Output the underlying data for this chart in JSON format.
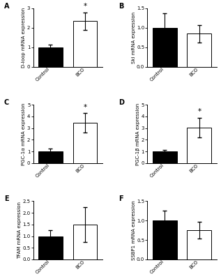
{
  "panels": [
    {
      "label": "A",
      "ylabel": "D-loop mRNA expression",
      "ylim": [
        0,
        3
      ],
      "yticks": [
        0,
        1,
        2,
        3
      ],
      "bars": [
        {
          "group": "Control",
          "value": 1.0,
          "err": 0.15,
          "color": "#000000"
        },
        {
          "group": "BCO",
          "value": 2.35,
          "err": 0.45,
          "color": "#ffffff"
        }
      ],
      "significant": true,
      "sig_bar": "BCO"
    },
    {
      "label": "B",
      "ylabel": "Ski mRNA expression",
      "ylim": [
        0.0,
        1.5
      ],
      "yticks": [
        0.0,
        0.5,
        1.0,
        1.5
      ],
      "bars": [
        {
          "group": "Control",
          "value": 1.0,
          "err": 0.38,
          "color": "#000000"
        },
        {
          "group": "BCO",
          "value": 0.85,
          "err": 0.22,
          "color": "#ffffff"
        }
      ],
      "significant": false,
      "sig_bar": null
    },
    {
      "label": "C",
      "ylabel": "PGC-1α mRNA expression",
      "ylim": [
        0,
        5
      ],
      "yticks": [
        0,
        1,
        2,
        3,
        4,
        5
      ],
      "bars": [
        {
          "group": "Control",
          "value": 1.0,
          "err": 0.25,
          "color": "#000000"
        },
        {
          "group": "BCO",
          "value": 3.45,
          "err": 0.85,
          "color": "#ffffff"
        }
      ],
      "significant": true,
      "sig_bar": "BCO"
    },
    {
      "label": "D",
      "ylabel": "PGC-1β mRNA expression",
      "ylim": [
        0,
        5
      ],
      "yticks": [
        0,
        1,
        2,
        3,
        4,
        5
      ],
      "bars": [
        {
          "group": "Control",
          "value": 1.0,
          "err": 0.15,
          "color": "#000000"
        },
        {
          "group": "BCO",
          "value": 3.05,
          "err": 0.85,
          "color": "#ffffff"
        }
      ],
      "significant": true,
      "sig_bar": "BCO"
    },
    {
      "label": "E",
      "ylabel": "TFAM mRNA expression",
      "ylim": [
        0.0,
        2.5
      ],
      "yticks": [
        0.0,
        0.5,
        1.0,
        1.5,
        2.0,
        2.5
      ],
      "bars": [
        {
          "group": "Control",
          "value": 1.0,
          "err": 0.25,
          "color": "#000000"
        },
        {
          "group": "BCO",
          "value": 1.5,
          "err": 0.75,
          "color": "#ffffff"
        }
      ],
      "significant": false,
      "sig_bar": null
    },
    {
      "label": "F",
      "ylabel": "SSBP1 mRNA expression",
      "ylim": [
        0.0,
        1.5
      ],
      "yticks": [
        0.0,
        0.5,
        1.0,
        1.5
      ],
      "bars": [
        {
          "group": "Control",
          "value": 1.0,
          "err": 0.25,
          "color": "#000000"
        },
        {
          "group": "BCO",
          "value": 0.75,
          "err": 0.22,
          "color": "#ffffff"
        }
      ],
      "significant": false,
      "sig_bar": null
    }
  ],
  "bar_width": 0.7,
  "bar_edgecolor": "#000000",
  "errorbar_color": "#000000",
  "errorbar_capsize": 2.0,
  "errorbar_linewidth": 0.8,
  "tick_fontsize": 5.0,
  "label_fontsize": 5.0,
  "panel_label_fontsize": 7,
  "xlabel_rotation": 45,
  "background_color": "#ffffff"
}
